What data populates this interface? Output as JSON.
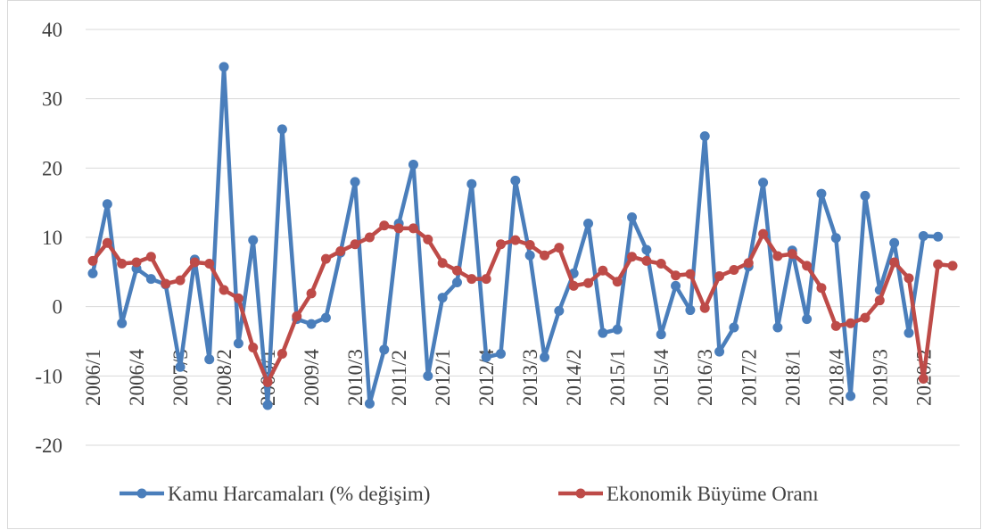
{
  "chart_data": {
    "type": "line",
    "categories": [
      "2006/1",
      null,
      null,
      "2006/4",
      null,
      null,
      "2007/3",
      null,
      null,
      "2008/2",
      null,
      null,
      "2009/1",
      null,
      null,
      "2009/4",
      null,
      null,
      "2010/3",
      null,
      null,
      "2011/2",
      null,
      null,
      "2012/1",
      null,
      null,
      "2012/4",
      null,
      null,
      "2013/3",
      null,
      null,
      "2014/2",
      null,
      null,
      "2015/1",
      null,
      null,
      "2015/4",
      null,
      null,
      "2016/3",
      null,
      null,
      "2017/2",
      null,
      null,
      "2018/1",
      null,
      null,
      "2018/4",
      null,
      null,
      "2019/3",
      null,
      null,
      "2020/2",
      null,
      null
    ],
    "series": [
      {
        "name": "Kamu Harcamaları (% değişim)",
        "color": "#4a7ebb",
        "values": [
          4.8,
          14.8,
          -2.4,
          5.5,
          4.0,
          3.2,
          -8.7,
          6.8,
          -7.6,
          34.6,
          -5.3,
          9.6,
          -14.2,
          25.6,
          -1.8,
          -2.5,
          -1.6,
          7.8,
          18.0,
          -14.0,
          -6.2,
          12.0,
          20.5,
          -10.0,
          1.3,
          3.5,
          17.7,
          -7.3,
          -6.8,
          18.2,
          7.4,
          -7.3,
          -0.6,
          4.8,
          12.0,
          -3.8,
          -3.3,
          12.9,
          8.2,
          -4.0,
          3.0,
          -0.5,
          24.6,
          -6.5,
          -3.0,
          5.8,
          17.9,
          -3.0,
          8.1,
          -1.8,
          16.3,
          9.9,
          -12.9,
          16.0,
          2.4,
          9.2,
          -3.8,
          10.2,
          10.1,
          null
        ]
      },
      {
        "name": "Ekonomik Büyüme Oranı",
        "color": "#be4b48",
        "values": [
          6.6,
          9.2,
          6.2,
          6.4,
          7.2,
          3.3,
          3.8,
          6.4,
          6.2,
          2.4,
          1.2,
          -5.9,
          -10.9,
          -6.8,
          -1.4,
          1.9,
          6.9,
          8.0,
          9.0,
          10.0,
          11.7,
          11.3,
          11.3,
          9.7,
          6.3,
          5.2,
          4.0,
          4.0,
          9.0,
          9.6,
          8.9,
          7.4,
          8.5,
          3.0,
          3.4,
          5.2,
          3.6,
          7.2,
          6.6,
          6.2,
          4.5,
          4.7,
          -0.2,
          4.4,
          5.3,
          6.3,
          10.5,
          7.3,
          7.6,
          5.9,
          2.7,
          -2.8,
          -2.4,
          -1.6,
          0.9,
          6.4,
          4.1,
          -10.4,
          6.1,
          5.9
        ]
      }
    ],
    "ylim": [
      -20,
      40
    ],
    "yticks": [
      -20,
      -10,
      0,
      10,
      20,
      30,
      40
    ],
    "grid": true,
    "legend": "bottom"
  }
}
